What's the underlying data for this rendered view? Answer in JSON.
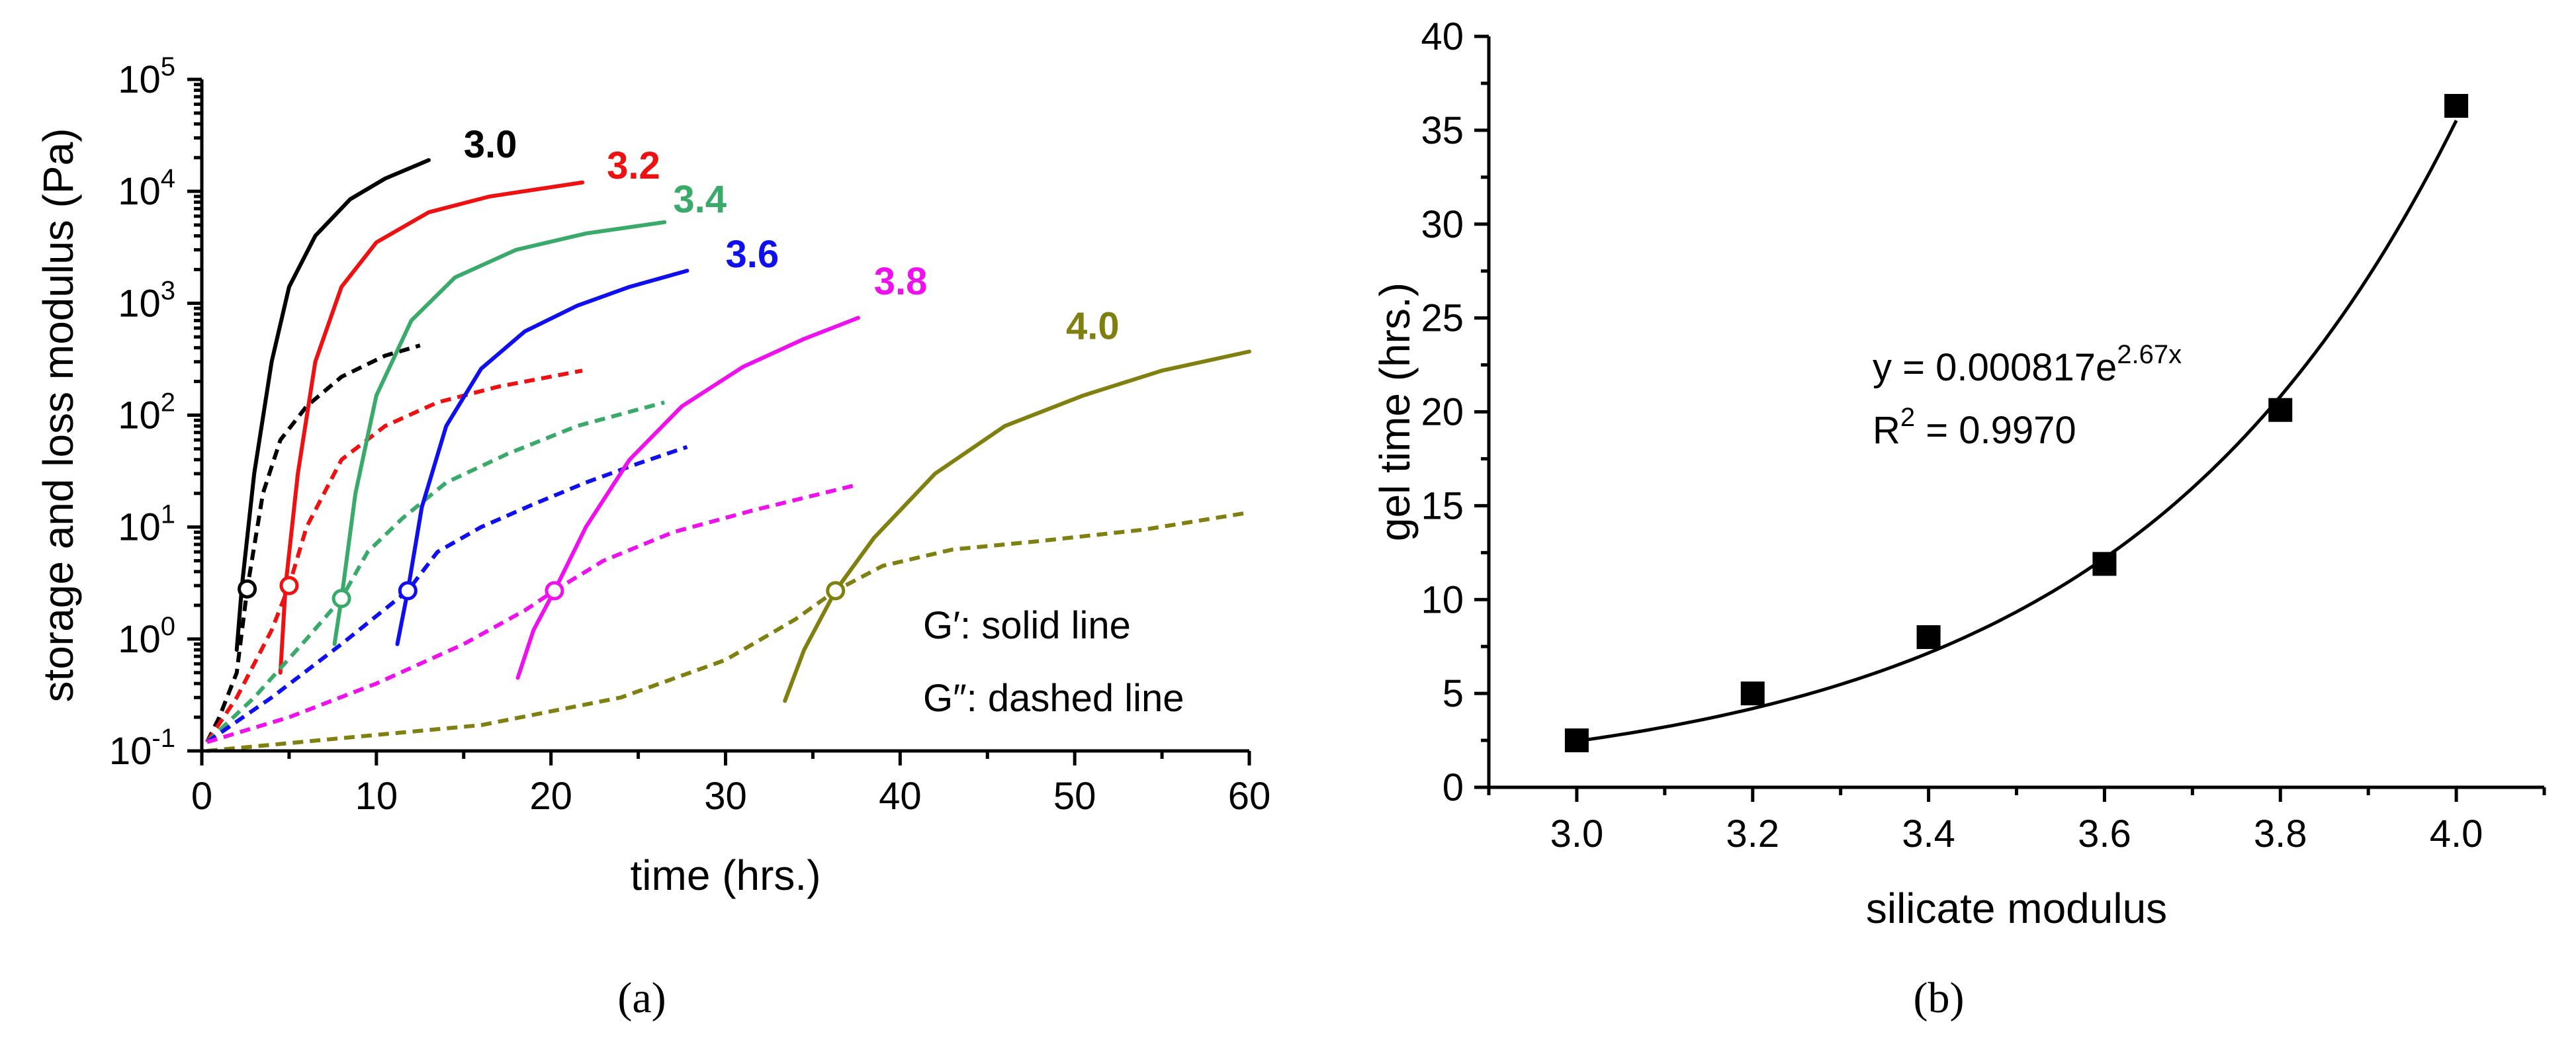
{
  "panel_labels": {
    "a": "(a)",
    "b": "(b)"
  },
  "chart_data": [
    {
      "type": "line",
      "panel": "a",
      "xlabel": "time (hrs.)",
      "ylabel": "storage and loss modulus (Pa)",
      "xlim": [
        0,
        60
      ],
      "ylim": [
        0.1,
        100000
      ],
      "yscale": "log",
      "x_ticks": [
        "0",
        "10",
        "20",
        "30",
        "40",
        "50",
        "60"
      ],
      "y_ticks": [
        {
          "value": 0.1,
          "base": "10",
          "exp": "-1"
        },
        {
          "value": 1,
          "base": "10",
          "exp": "0"
        },
        {
          "value": 10,
          "base": "10",
          "exp": "1"
        },
        {
          "value": 100,
          "base": "10",
          "exp": "2"
        },
        {
          "value": 1000,
          "base": "10",
          "exp": "3"
        },
        {
          "value": 10000,
          "base": "10",
          "exp": "4"
        },
        {
          "value": 100000,
          "base": "10",
          "exp": "5"
        }
      ],
      "legend_notes": [
        "G′: solid line",
        "G″: dashed line"
      ],
      "series": [
        {
          "name": "3.0",
          "color": "#000000",
          "G_prime": [
            [
              2.0,
              0.8
            ],
            [
              2.3,
              3
            ],
            [
              3,
              30
            ],
            [
              4,
              300
            ],
            [
              5,
              1400
            ],
            [
              6.5,
              4000
            ],
            [
              8.5,
              8500
            ],
            [
              10.5,
              13000
            ],
            [
              13,
              19000
            ]
          ],
          "G_double_prime": [
            [
              0.3,
              0.12
            ],
            [
              1,
              0.2
            ],
            [
              2,
              0.5
            ],
            [
              2.6,
              2.8
            ],
            [
              3.5,
              20
            ],
            [
              4.5,
              60
            ],
            [
              6,
              120
            ],
            [
              8,
              220
            ],
            [
              10.5,
              340
            ],
            [
              12.5,
              420
            ]
          ],
          "crossover": [
            2.6,
            2.8
          ],
          "label_pos": [
            15.0,
            20000
          ]
        },
        {
          "name": "3.2",
          "color": "#ee1111",
          "G_prime": [
            [
              4.5,
              0.5
            ],
            [
              4.8,
              3
            ],
            [
              5.5,
              30
            ],
            [
              6.5,
              300
            ],
            [
              8,
              1400
            ],
            [
              10,
              3500
            ],
            [
              13,
              6500
            ],
            [
              16.5,
              9000
            ],
            [
              21.8,
              12000
            ]
          ],
          "G_double_prime": [
            [
              0.3,
              0.12
            ],
            [
              2,
              0.3
            ],
            [
              4,
              1.2
            ],
            [
              5,
              3
            ],
            [
              6,
              10
            ],
            [
              8,
              40
            ],
            [
              10.5,
              80
            ],
            [
              13.5,
              130
            ],
            [
              17,
              180
            ],
            [
              21.8,
              250
            ]
          ],
          "crossover": [
            5.0,
            3.0
          ],
          "label_pos": [
            23.2,
            13000
          ]
        },
        {
          "name": "3.4",
          "color": "#3aaa6a",
          "G_prime": [
            [
              7.6,
              0.9
            ],
            [
              8,
              2.3
            ],
            [
              8.8,
              20
            ],
            [
              10,
              150
            ],
            [
              12,
              700
            ],
            [
              14.5,
              1700
            ],
            [
              18,
              3000
            ],
            [
              22,
              4200
            ],
            [
              26.5,
              5300
            ]
          ],
          "G_double_prime": [
            [
              0.3,
              0.12
            ],
            [
              3,
              0.3
            ],
            [
              6,
              1
            ],
            [
              8,
              2.3
            ],
            [
              9.5,
              6
            ],
            [
              11.5,
              12
            ],
            [
              14,
              25
            ],
            [
              17.5,
              45
            ],
            [
              21.5,
              80
            ],
            [
              26.5,
              130
            ]
          ],
          "crossover": [
            8.0,
            2.3
          ],
          "label_pos": [
            27.0,
            6500
          ]
        },
        {
          "name": "3.6",
          "color": "#1010ee",
          "G_prime": [
            [
              11.2,
              0.9
            ],
            [
              11.8,
              2.7
            ],
            [
              12.6,
              15
            ],
            [
              14,
              80
            ],
            [
              16,
              260
            ],
            [
              18.5,
              560
            ],
            [
              21.5,
              950
            ],
            [
              24.5,
              1400
            ],
            [
              27.8,
              1950
            ]
          ],
          "G_double_prime": [
            [
              0.3,
              0.12
            ],
            [
              4,
              0.3
            ],
            [
              8,
              0.9
            ],
            [
              11.8,
              2.7
            ],
            [
              13.5,
              6
            ],
            [
              16,
              10
            ],
            [
              19,
              16
            ],
            [
              22,
              25
            ],
            [
              25,
              37
            ],
            [
              27.8,
              52
            ]
          ],
          "crossover": [
            11.8,
            2.7
          ],
          "label_pos": [
            30.0,
            2100
          ]
        },
        {
          "name": "3.8",
          "color": "#ee11ee",
          "G_prime": [
            [
              18.1,
              0.45
            ],
            [
              19,
              1.2
            ],
            [
              20.2,
              2.7
            ],
            [
              22,
              10
            ],
            [
              24.5,
              40
            ],
            [
              27.5,
              120
            ],
            [
              31,
              270
            ],
            [
              34.5,
              480
            ],
            [
              37.6,
              740
            ]
          ],
          "G_double_prime": [
            [
              0.3,
              0.12
            ],
            [
              5,
              0.2
            ],
            [
              10,
              0.4
            ],
            [
              15,
              0.9
            ],
            [
              18.5,
              1.8
            ],
            [
              20.2,
              2.7
            ],
            [
              23,
              5
            ],
            [
              27,
              9
            ],
            [
              31.5,
              14
            ],
            [
              37.6,
              24
            ]
          ],
          "crossover": [
            20.2,
            2.7
          ],
          "label_pos": [
            38.5,
            1200
          ]
        },
        {
          "name": "4.0",
          "color": "#808010",
          "G_prime": [
            [
              33.4,
              0.28
            ],
            [
              34.5,
              0.8
            ],
            [
              36.3,
              2.7
            ],
            [
              38.5,
              8
            ],
            [
              42,
              30
            ],
            [
              46,
              80
            ],
            [
              50.5,
              150
            ],
            [
              55,
              250
            ],
            [
              60,
              370
            ]
          ],
          "G_double_prime": [
            [
              0.3,
              0.1
            ],
            [
              8,
              0.13
            ],
            [
              16,
              0.17
            ],
            [
              24,
              0.3
            ],
            [
              30,
              0.65
            ],
            [
              34,
              1.5
            ],
            [
              36.3,
              2.7
            ],
            [
              39,
              4.5
            ],
            [
              43,
              6.3
            ],
            [
              48,
              7.5
            ],
            [
              54,
              9.5
            ],
            [
              60,
              13.5
            ]
          ],
          "crossover": [
            36.3,
            2.7
          ],
          "label_pos": [
            49.5,
            480
          ]
        }
      ]
    },
    {
      "type": "scatter",
      "panel": "b",
      "xlabel": "silicate modulus",
      "ylabel": "gel time (hrs.)",
      "xlim": [
        2.9,
        4.1
      ],
      "ylim": [
        0,
        40
      ],
      "x_ticks": [
        "3.0",
        "3.2",
        "3.4",
        "3.6",
        "3.8",
        "4.0"
      ],
      "y_ticks": [
        "0",
        "5",
        "10",
        "15",
        "20",
        "25",
        "30",
        "35",
        "40"
      ],
      "x": [
        3.0,
        3.2,
        3.4,
        3.6,
        3.8,
        4.0
      ],
      "y": [
        2.5,
        5.0,
        8.0,
        11.9,
        20.1,
        36.3
      ],
      "fit": {
        "a": 0.000817,
        "b": 2.67,
        "x_range": [
          3.0,
          4.0
        ]
      },
      "equation": {
        "prefix": "y = 0.000817e",
        "exponent": "2.67x"
      },
      "r_squared": {
        "prefix": "R",
        "sup": "2",
        "suffix": " = 0.9970"
      }
    }
  ]
}
